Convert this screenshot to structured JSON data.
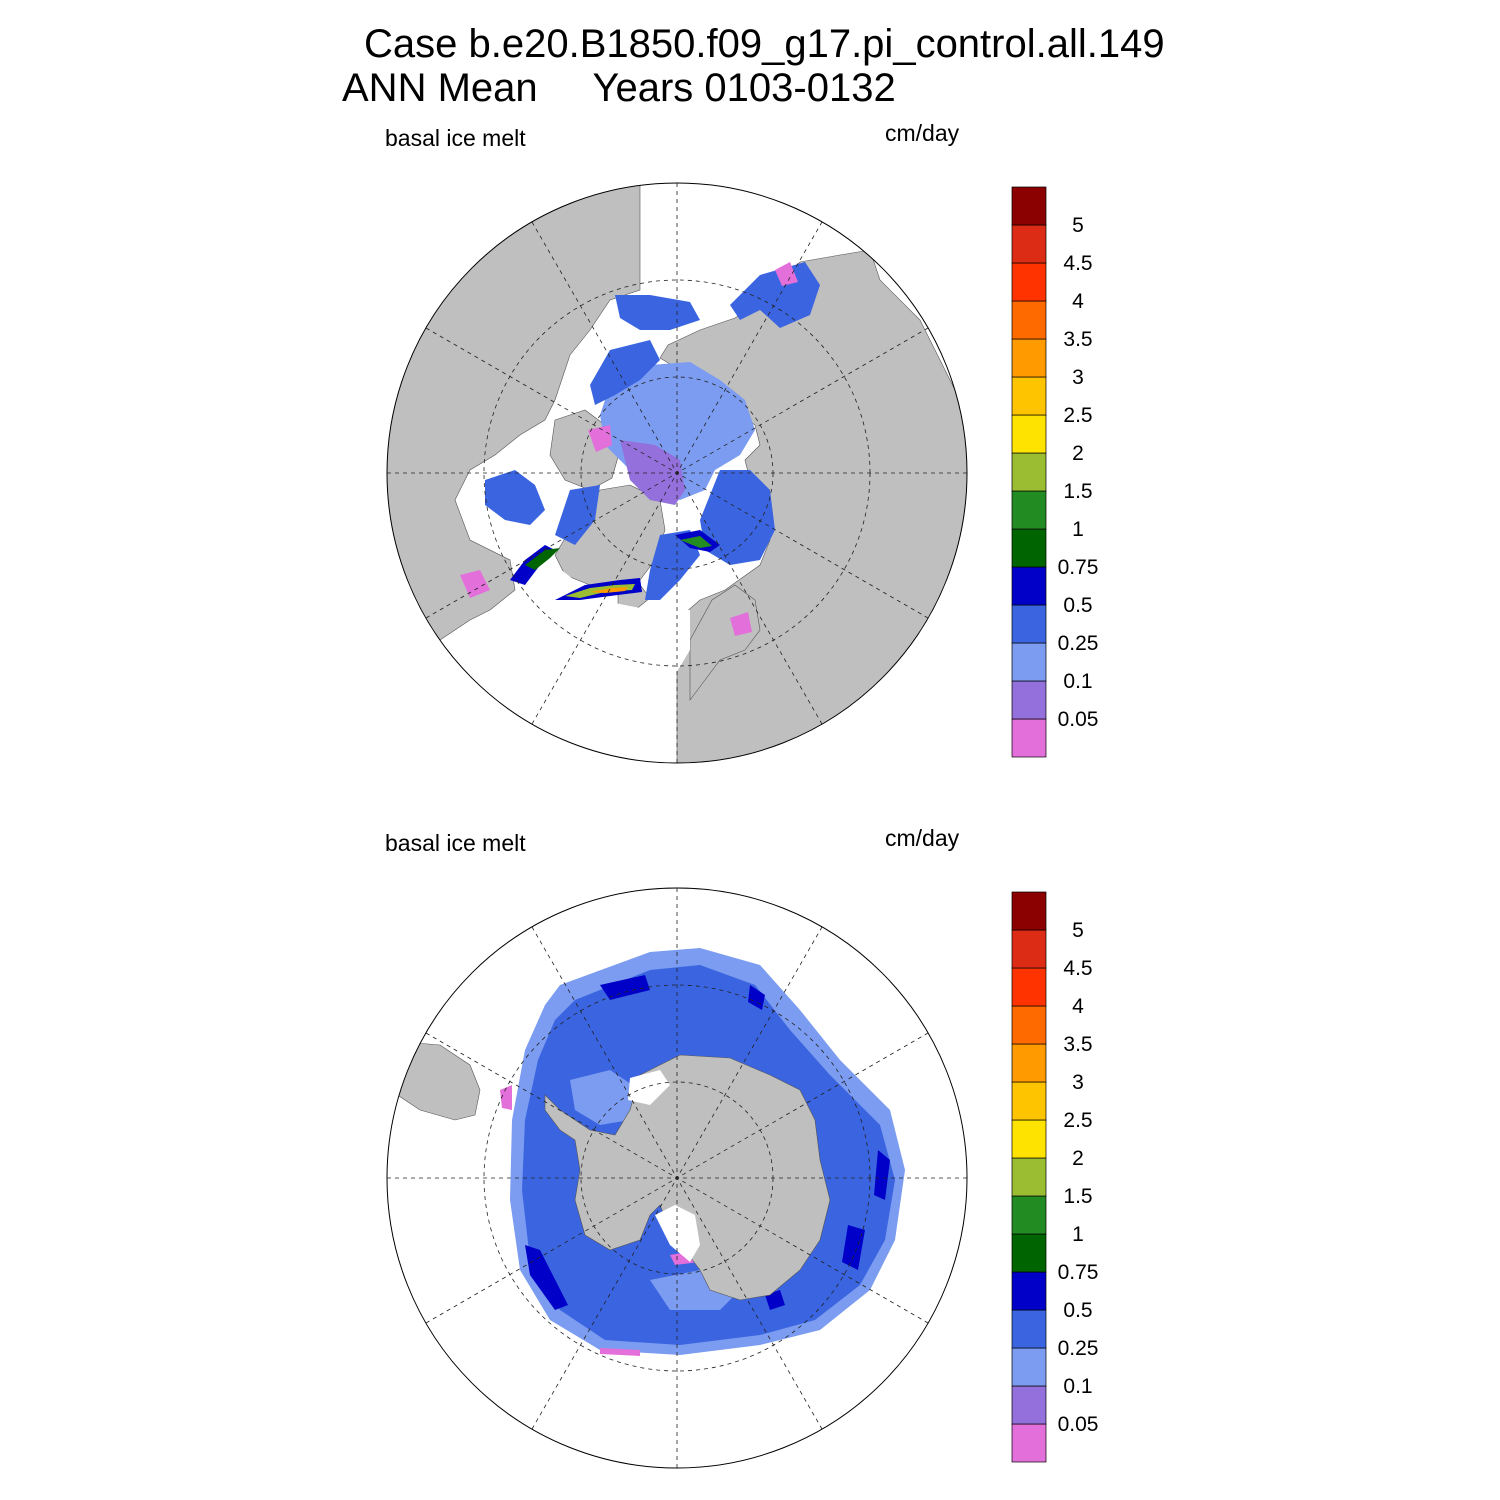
{
  "header": {
    "line1": "Case b.e20.B1850.f09_g17.pi_control.all.149",
    "line2": "ANN Mean     Years 0103-0132"
  },
  "colors": {
    "land": "#bfbfbf",
    "missing": "#ffffff",
    "scale": [
      "#e36fdb",
      "#9370db",
      "#7b9cf0",
      "#3b65e0",
      "#0000c8",
      "#006400",
      "#228b22",
      "#9abd32",
      "#ffe300",
      "#ffc400",
      "#ff9a00",
      "#ff6a00",
      "#ff3300",
      "#dc2c16",
      "#8b0000"
    ]
  },
  "colorbar": {
    "levels": [
      "0.05",
      "0.1",
      "0.25",
      "0.5",
      "0.75",
      "1",
      "1.5",
      "2",
      "2.5",
      "3",
      "3.5",
      "4",
      "4.5",
      "5"
    ]
  },
  "panels": [
    {
      "id": "north",
      "hemisphere": "Northern Hemisphere",
      "variable_label": "basal ice melt",
      "units_label": "cm/day"
    },
    {
      "id": "south",
      "hemisphere": "Southern Hemisphere",
      "variable_label": "basal ice melt",
      "units_label": "cm/day"
    }
  ]
}
